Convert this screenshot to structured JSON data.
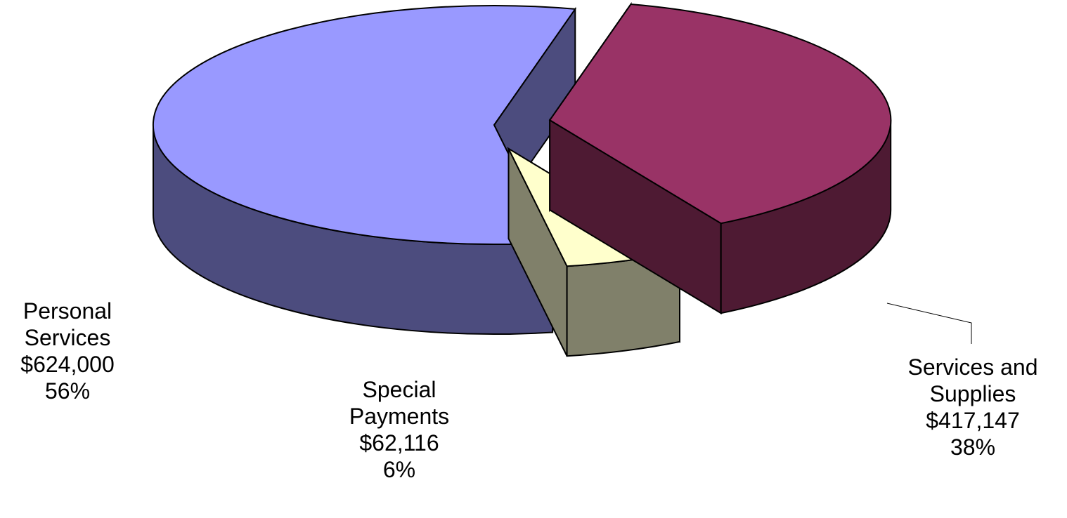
{
  "chart_data": {
    "type": "pie",
    "three_d": true,
    "exploded": true,
    "title": "",
    "slices": [
      {
        "name_lines": [
          "Personal",
          "Services"
        ],
        "value": 624000,
        "value_label": "$624,000",
        "percent": 56,
        "percent_label": "56%",
        "top_color": "#9999ff",
        "side_color": "#4c4c7e"
      },
      {
        "name_lines": [
          "Services and",
          "Supplies"
        ],
        "value": 417147,
        "value_label": "$417,147",
        "percent": 38,
        "percent_label": "38%",
        "top_color": "#993366",
        "side_color": "#4e1a33"
      },
      {
        "name_lines": [
          "Special",
          "Payments"
        ],
        "value": 62116,
        "value_label": "$62,116",
        "percent": 6,
        "percent_label": "6%",
        "top_color": "#ffffcc",
        "side_color": "#80806a"
      }
    ]
  }
}
